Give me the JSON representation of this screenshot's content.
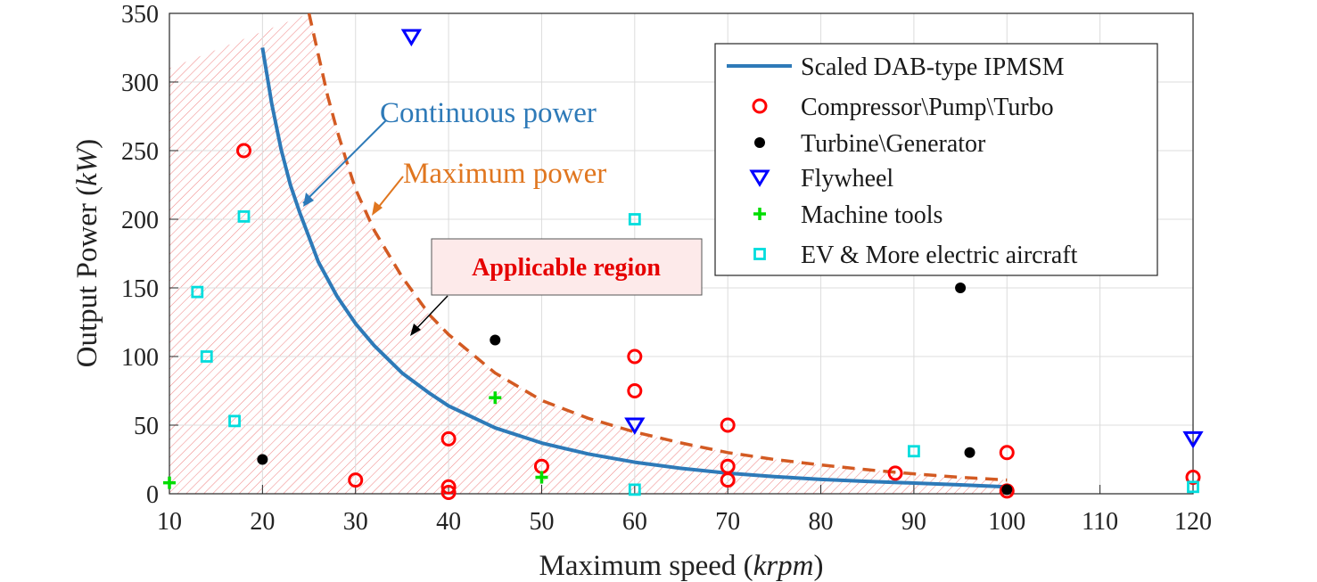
{
  "chart_data": {
    "type": "scatter",
    "xlabel_main": "Maximum speed (",
    "xlabel_unit": "krpm",
    "xlabel_end": ")",
    "ylabel_main": "Output Power (",
    "ylabel_unit": "kW",
    "ylabel_end": ")",
    "xlim": [
      10,
      120
    ],
    "ylim": [
      0,
      350
    ],
    "xticks": [
      10,
      20,
      30,
      40,
      50,
      60,
      70,
      80,
      90,
      100,
      110,
      120
    ],
    "yticks": [
      0,
      50,
      100,
      150,
      200,
      250,
      300,
      350
    ],
    "grid": true,
    "legend_position": "top-right",
    "curves": [
      {
        "name": "Scaled DAB-type IPMSM",
        "color": "#2e7ab8",
        "style": "solid",
        "x": [
          20,
          21,
          22,
          23,
          24,
          26,
          28,
          30,
          32,
          35,
          38,
          40,
          45,
          50,
          55,
          60,
          65,
          70,
          75,
          80,
          85,
          90,
          95,
          100
        ],
        "y": [
          325,
          284,
          251,
          225,
          205,
          169,
          144,
          124,
          108,
          88,
          73,
          64,
          48,
          37,
          29,
          23,
          18.5,
          15,
          12.5,
          10.5,
          9,
          7.8,
          6.5,
          5
        ]
      },
      {
        "name": "Maximum power",
        "color": "#d35a22",
        "style": "dashed",
        "x": [
          25,
          26,
          27,
          28,
          29,
          30,
          32,
          35,
          38,
          40,
          45,
          50,
          55,
          60,
          65,
          70,
          75,
          80,
          85,
          90,
          95,
          100
        ],
        "y": [
          350,
          320,
          290,
          265,
          243,
          222,
          192,
          158,
          130,
          116,
          88,
          68,
          55,
          45,
          37,
          30,
          25,
          21,
          17.5,
          14.5,
          12,
          10
        ]
      }
    ],
    "series": [
      {
        "name": "Compressor\\Pump\\Turbo",
        "marker": "circle-open",
        "color": "#ff0000",
        "points": [
          [
            18,
            250
          ],
          [
            30,
            10
          ],
          [
            40,
            40
          ],
          [
            40,
            5
          ],
          [
            40,
            1
          ],
          [
            50,
            20
          ],
          [
            60,
            100
          ],
          [
            60,
            75
          ],
          [
            70,
            50
          ],
          [
            70,
            20
          ],
          [
            70,
            10
          ],
          [
            88,
            15
          ],
          [
            100,
            30
          ],
          [
            100,
            2
          ],
          [
            120,
            12
          ]
        ]
      },
      {
        "name": "Turbine\\Generator",
        "marker": "dot",
        "color": "#000000",
        "points": [
          [
            20,
            25
          ],
          [
            45,
            112
          ],
          [
            95,
            150
          ],
          [
            96,
            30
          ],
          [
            100,
            3
          ]
        ]
      },
      {
        "name": "Flywheel",
        "marker": "triangle-down-open",
        "color": "#0000ff",
        "points": [
          [
            36,
            333
          ],
          [
            60,
            50
          ],
          [
            120,
            40
          ]
        ]
      },
      {
        "name": "Machine tools",
        "marker": "plus",
        "color": "#00dd00",
        "points": [
          [
            10,
            8
          ],
          [
            45,
            70
          ],
          [
            50,
            12
          ]
        ]
      },
      {
        "name": "EV & More electric aircraft",
        "marker": "square-open",
        "color": "#00dddd",
        "points": [
          [
            13,
            147
          ],
          [
            14,
            100
          ],
          [
            17,
            53
          ],
          [
            18,
            202
          ],
          [
            60,
            200
          ],
          [
            60,
            3
          ],
          [
            90,
            31
          ],
          [
            120,
            5
          ]
        ]
      }
    ],
    "annotations": {
      "continuous": "Continuous power",
      "maximum": "Maximum power",
      "region": "Applicable region"
    }
  }
}
